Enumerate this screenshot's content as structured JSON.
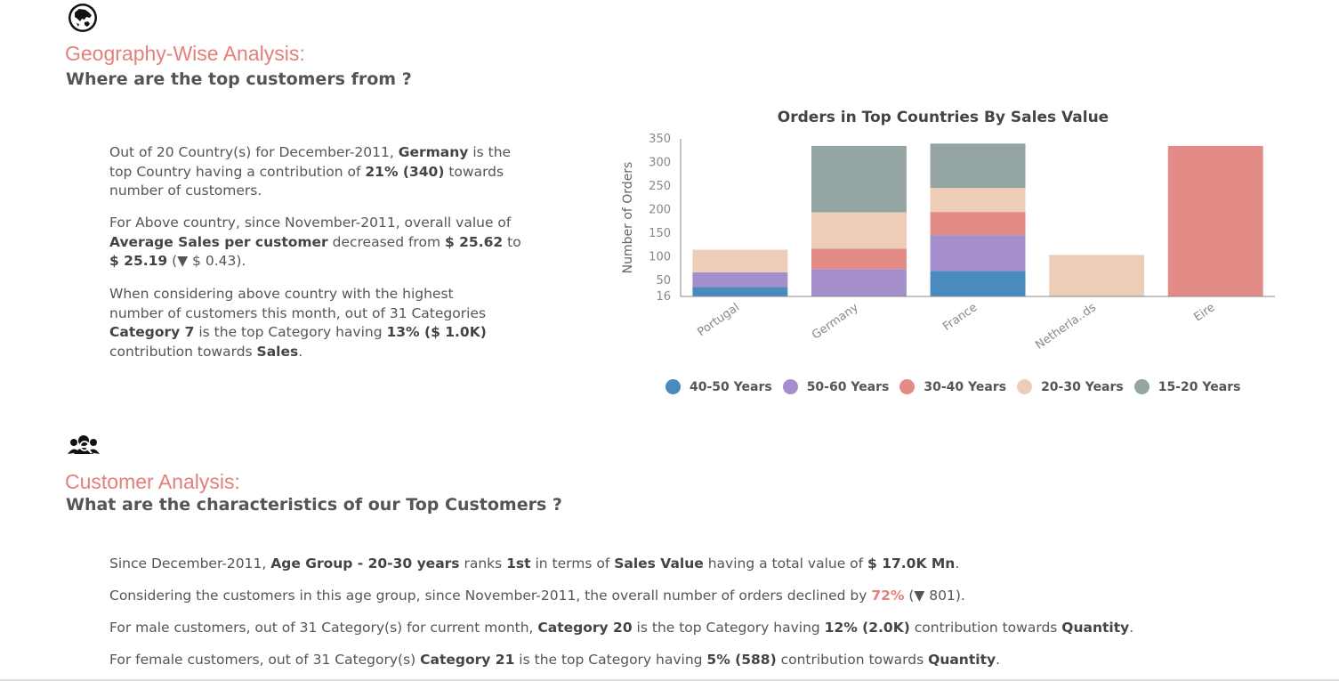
{
  "geo": {
    "icon": "globe-asia-icon",
    "title": "Geography-Wise Analysis:",
    "subtitle": "Where are the top customers from ?",
    "p1": {
      "t1": "Out of 20 Country(s) for December-2011, ",
      "b1": "Germany",
      "t2": " is the top Country having a contribution of ",
      "b2": "21% (340)",
      "t3": " towards number of customers."
    },
    "p2": {
      "t1": "For Above country, since November-2011, overall value of ",
      "b1": "Average Sales per customer",
      "t2": " decreased from ",
      "b2": "$ 25.62",
      "t3": " to ",
      "b3": "$ 25.19",
      "t4": " (▼ $ 0.43)."
    },
    "p3": {
      "t1": "When considering above country with the highest number of customers this month, out of 31 Categories ",
      "b1": "Category 7",
      "t2": " is the top Category having ",
      "b2": "13% ($ 1.0K)",
      "t3": " contribution towards ",
      "b3": "Sales",
      "t4": "."
    }
  },
  "chart_data": {
    "type": "bar",
    "stacked": true,
    "title": "Orders in Top Countries By Sales Value",
    "xlabel": "",
    "ylabel": "Number of Orders",
    "yticks": [
      "350",
      "300",
      "250",
      "200",
      "150",
      "100",
      "50",
      "16"
    ],
    "ytick_values": [
      350,
      300,
      250,
      200,
      150,
      100,
      50,
      16
    ],
    "ylim": [
      16,
      350
    ],
    "categories": [
      "Portugal",
      "Germany",
      "France",
      "Netherla..ds",
      "Eire"
    ],
    "series": [
      {
        "name": "40-50 Years",
        "color": "#4a8bbf",
        "values": [
          20,
          0,
          54,
          0,
          0
        ]
      },
      {
        "name": "50-60 Years",
        "color": "#a48fcc",
        "values": [
          31,
          58,
          76,
          0,
          0
        ]
      },
      {
        "name": "30-40 Years",
        "color": "#e28b87",
        "values": [
          0,
          43,
          49,
          0,
          319
        ]
      },
      {
        "name": "20-30 Years",
        "color": "#eecdb8",
        "values": [
          48,
          77,
          51,
          88,
          0
        ]
      },
      {
        "name": "15-20 Years",
        "color": "#95a5a4",
        "values": [
          0,
          141,
          94,
          0,
          0
        ]
      }
    ],
    "legend_position": "bottom",
    "grid": false
  },
  "cust": {
    "icon": "customers-group-icon",
    "title": "Customer Analysis:",
    "subtitle": "What are the characteristics of our Top Customers ?",
    "l1": {
      "t1": "Since December-2011, ",
      "b1": "Age Group - 20-30 years",
      "t2": " ranks ",
      "b2": "1st",
      "t3": " in terms of ",
      "b3": "Sales Value",
      "t4": " having a total value of ",
      "b4": "$ 17.0K Mn",
      "t5": "."
    },
    "l2": {
      "t1": "Considering the customers in this age group, since November-2011, the overall number of orders declined by ",
      "h1": "72%",
      "t2": " (▼ 801)."
    },
    "l3": {
      "t1": "For male customers, out of 31 Category(s) for current month, ",
      "b1": "Category 20",
      "t2": " is the top Category having ",
      "b2": "12% (2.0K)",
      "t3": " contribution towards ",
      "b3": "Quantity",
      "t4": "."
    },
    "l4": {
      "t1": "For female customers, out of 31 Category(s) ",
      "b1": "Category 21",
      "t2": " is the top Category having ",
      "b2": "5% (588)",
      "t3": " contribution towards ",
      "b3": "Quantity",
      "t4": "."
    }
  }
}
